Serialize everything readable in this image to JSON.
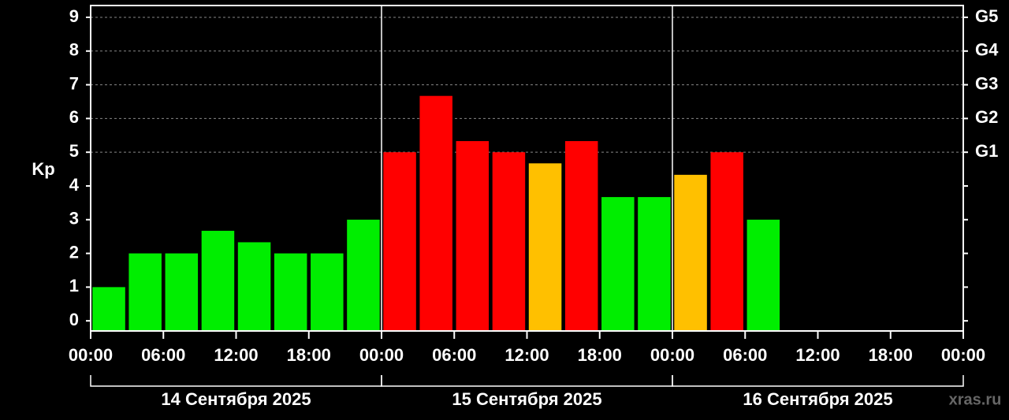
{
  "chart_data": {
    "type": "bar",
    "y_label": "Kp",
    "watermark": "xras.ru",
    "x": [
      0,
      3,
      6,
      9,
      12,
      15,
      18,
      21,
      24,
      27,
      30,
      33,
      36,
      39,
      42,
      45,
      48,
      51,
      54,
      57,
      60,
      63,
      66,
      69
    ],
    "values": [
      1,
      2,
      2,
      2.67,
      2.33,
      2,
      2,
      3,
      5,
      6.67,
      5.33,
      5,
      4.67,
      5.33,
      3.67,
      3.67,
      4.33,
      5,
      3,
      null,
      null,
      null,
      null,
      null
    ],
    "colors": [
      "#00ee00",
      "#00ee00",
      "#00ee00",
      "#00ee00",
      "#00ee00",
      "#00ee00",
      "#00ee00",
      "#00ee00",
      "#ff0000",
      "#ff0000",
      "#ff0000",
      "#ff0000",
      "#ffc000",
      "#ff0000",
      "#00ee00",
      "#00ee00",
      "#ffc000",
      "#ff0000",
      "#00ee00",
      null,
      null,
      null,
      null,
      null
    ],
    "bar_width": 2.7,
    "xlim": [
      0,
      72
    ],
    "xticks": [
      {
        "value": 0,
        "label": "00:00"
      },
      {
        "value": 6,
        "label": "06:00"
      },
      {
        "value": 12,
        "label": "12:00"
      },
      {
        "value": 18,
        "label": "18:00"
      },
      {
        "value": 24,
        "label": "00:00"
      },
      {
        "value": 30,
        "label": "06:00"
      },
      {
        "value": 36,
        "label": "12:00"
      },
      {
        "value": 42,
        "label": "18:00"
      },
      {
        "value": 48,
        "label": "00:00"
      },
      {
        "value": 54,
        "label": "06:00"
      },
      {
        "value": 60,
        "label": "12:00"
      },
      {
        "value": 66,
        "label": "18:00"
      },
      {
        "value": 72,
        "label": "00:00"
      }
    ],
    "days": [
      {
        "label": "14 Сентября 2025",
        "start": 0,
        "end": 24
      },
      {
        "label": "15 Сентября 2025",
        "start": 24,
        "end": 48
      },
      {
        "label": "16 Сентября 2025",
        "start": 48,
        "end": 72
      }
    ],
    "ylim": [
      -0.3,
      9.35
    ],
    "yticks": [
      0,
      1,
      2,
      3,
      4,
      5,
      6,
      7,
      8,
      9
    ],
    "y2lim": [
      -0.3,
      9.35
    ],
    "y2ticks": [
      {
        "value": 5,
        "label": "G1"
      },
      {
        "value": 6,
        "label": "G2"
      },
      {
        "value": 7,
        "label": "G3"
      },
      {
        "value": 8,
        "label": "G4"
      },
      {
        "value": 9,
        "label": "G5"
      }
    ],
    "grid_from": 5
  }
}
